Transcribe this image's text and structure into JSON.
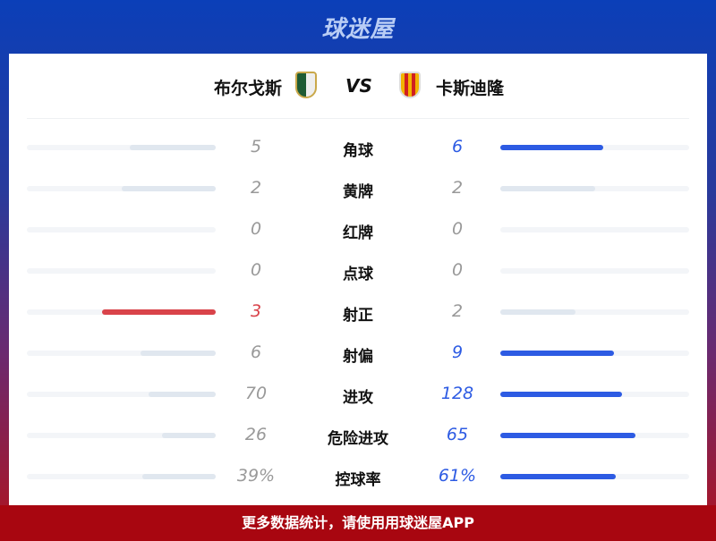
{
  "brand": "球迷屋",
  "match": {
    "home": "布尔戈斯",
    "away": "卡斯迪隆",
    "vs": "VS"
  },
  "colors": {
    "home_win": "#d9434a",
    "away_win": "#2d5be3",
    "neutral": "#e0e7ef",
    "neutral_text": "#999999"
  },
  "stats": [
    {
      "label": "角球",
      "home": "5",
      "away": "6",
      "h": 5,
      "a": 6
    },
    {
      "label": "黄牌",
      "home": "2",
      "away": "2",
      "h": 2,
      "a": 2
    },
    {
      "label": "红牌",
      "home": "0",
      "away": "0",
      "h": 0,
      "a": 0
    },
    {
      "label": "点球",
      "home": "0",
      "away": "0",
      "h": 0,
      "a": 0
    },
    {
      "label": "射正",
      "home": "3",
      "away": "2",
      "h": 3,
      "a": 2
    },
    {
      "label": "射偏",
      "home": "6",
      "away": "9",
      "h": 6,
      "a": 9
    },
    {
      "label": "进攻",
      "home": "70",
      "away": "128",
      "h": 70,
      "a": 128
    },
    {
      "label": "危险进攻",
      "home": "26",
      "away": "65",
      "h": 26,
      "a": 65
    },
    {
      "label": "控球率",
      "home": "39%",
      "away": "61%",
      "h": 39,
      "a": 61
    }
  ],
  "footer": "更多数据统计，请使用用球迷屋APP"
}
